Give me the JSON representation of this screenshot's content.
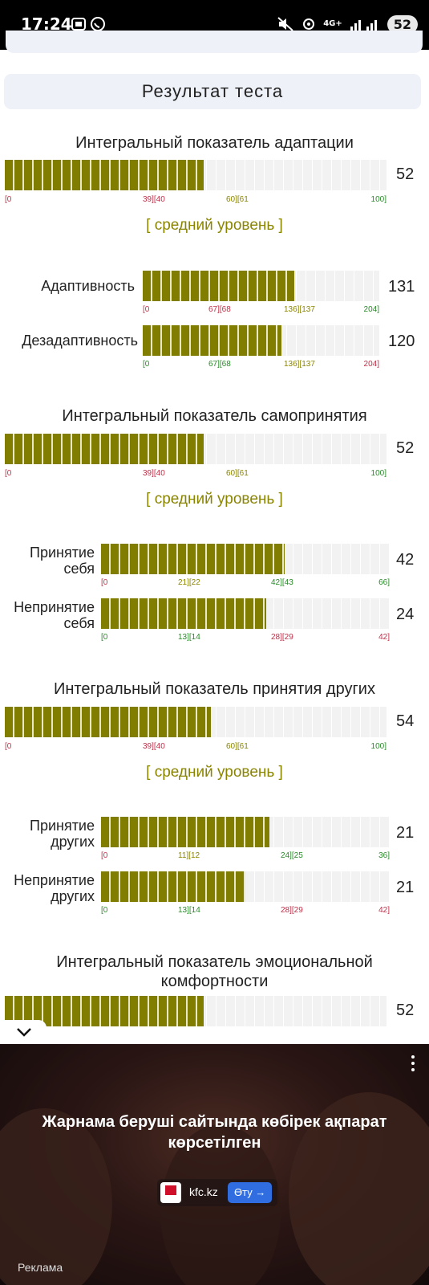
{
  "status_bar": {
    "time": "17:24",
    "network": "4G+",
    "battery": "52"
  },
  "header": {
    "title": "Результат теста"
  },
  "sections": [
    {
      "title": "Интегральный показатель адаптации",
      "value": "52",
      "fill": 0.52,
      "scale": [
        "[0",
        "39][40",
        "60][61",
        "100]"
      ],
      "level": "[ средний уровень ]",
      "subscales": [
        {
          "label": "Адаптивность",
          "value": "131",
          "fill": 0.642,
          "scale": [
            "[0",
            "67][68",
            "136][137",
            "204]"
          ]
        },
        {
          "label": "Дезадаптивность",
          "value": "120",
          "fill": 0.588,
          "scale": [
            "[0",
            "67][68",
            "136][137",
            "204]"
          ]
        }
      ]
    },
    {
      "title": "Интегральный показатель самопринятия",
      "value": "52",
      "fill": 0.52,
      "scale": [
        "[0",
        "39][40",
        "60][61",
        "100]"
      ],
      "level": "[ средний уровень ]",
      "subscales": [
        {
          "label": "Принятие себя",
          "value": "42",
          "fill": 0.636,
          "scale": [
            "[0",
            "21][22",
            "42][43",
            "66]"
          ]
        },
        {
          "label": "Непринятие себя",
          "value": "24",
          "fill": 0.571,
          "scale": [
            "[0",
            "13][14",
            "28][29",
            "42]"
          ]
        }
      ]
    },
    {
      "title": "Интегральный показатель принятия других",
      "value": "54",
      "fill": 0.54,
      "scale": [
        "[0",
        "39][40",
        "60][61",
        "100]"
      ],
      "level": "[ средний уровень ]",
      "subscales": [
        {
          "label": "Принятие других",
          "value": "21",
          "fill": 0.583,
          "scale": [
            "[0",
            "11][12",
            "24][25",
            "36]"
          ]
        },
        {
          "label": "Непринятие других",
          "value": "21",
          "fill": 0.5,
          "scale": [
            "[0",
            "13][14",
            "28][29",
            "42]"
          ]
        }
      ]
    },
    {
      "title": "Интегральный показатель эмоциональной комфортности",
      "value": "52",
      "fill": 0.52
    }
  ],
  "ad": {
    "text": "Жарнама беруші сайтында көбірек ақпарат көрсетілген",
    "domain": "kfc.kz",
    "go": "Өту →",
    "label": "Реклама"
  }
}
